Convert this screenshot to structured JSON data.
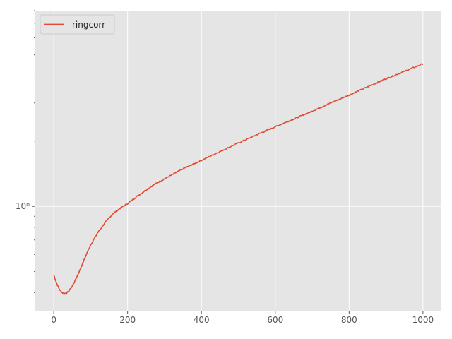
{
  "chart_data": {
    "type": "line",
    "title": "",
    "xlabel": "",
    "ylabel": "",
    "xlim": [
      -50,
      1050
    ],
    "ylim": [
      0.33,
      8.0
    ],
    "yscale": "log",
    "grid": true,
    "legend_position": "upper-left",
    "x_ticks": [
      {
        "value": 0,
        "label": "0"
      },
      {
        "value": 200,
        "label": "200"
      },
      {
        "value": 400,
        "label": "400"
      },
      {
        "value": 600,
        "label": "600"
      },
      {
        "value": 800,
        "label": "800"
      },
      {
        "value": 1000,
        "label": "1000"
      }
    ],
    "y_ticks": [
      {
        "value": 1,
        "label": "10⁰"
      }
    ],
    "series": [
      {
        "name": "ringcorr",
        "color": "#E24A33",
        "x": [
          0,
          5,
          10,
          15,
          20,
          25,
          30,
          35,
          40,
          50,
          60,
          70,
          80,
          90,
          100,
          120,
          140,
          160,
          180,
          200,
          225,
          250,
          275,
          300,
          350,
          400,
          450,
          500,
          550,
          600,
          650,
          700,
          750,
          800,
          850,
          900,
          950,
          1000
        ],
        "y": [
          0.485,
          0.455,
          0.433,
          0.415,
          0.404,
          0.398,
          0.397,
          0.399,
          0.405,
          0.428,
          0.463,
          0.505,
          0.555,
          0.61,
          0.665,
          0.76,
          0.845,
          0.925,
          0.98,
          1.03,
          1.11,
          1.19,
          1.27,
          1.34,
          1.49,
          1.63,
          1.79,
          1.96,
          2.14,
          2.33,
          2.53,
          2.75,
          3.0,
          3.26,
          3.56,
          3.88,
          4.2,
          4.55
        ]
      }
    ]
  }
}
